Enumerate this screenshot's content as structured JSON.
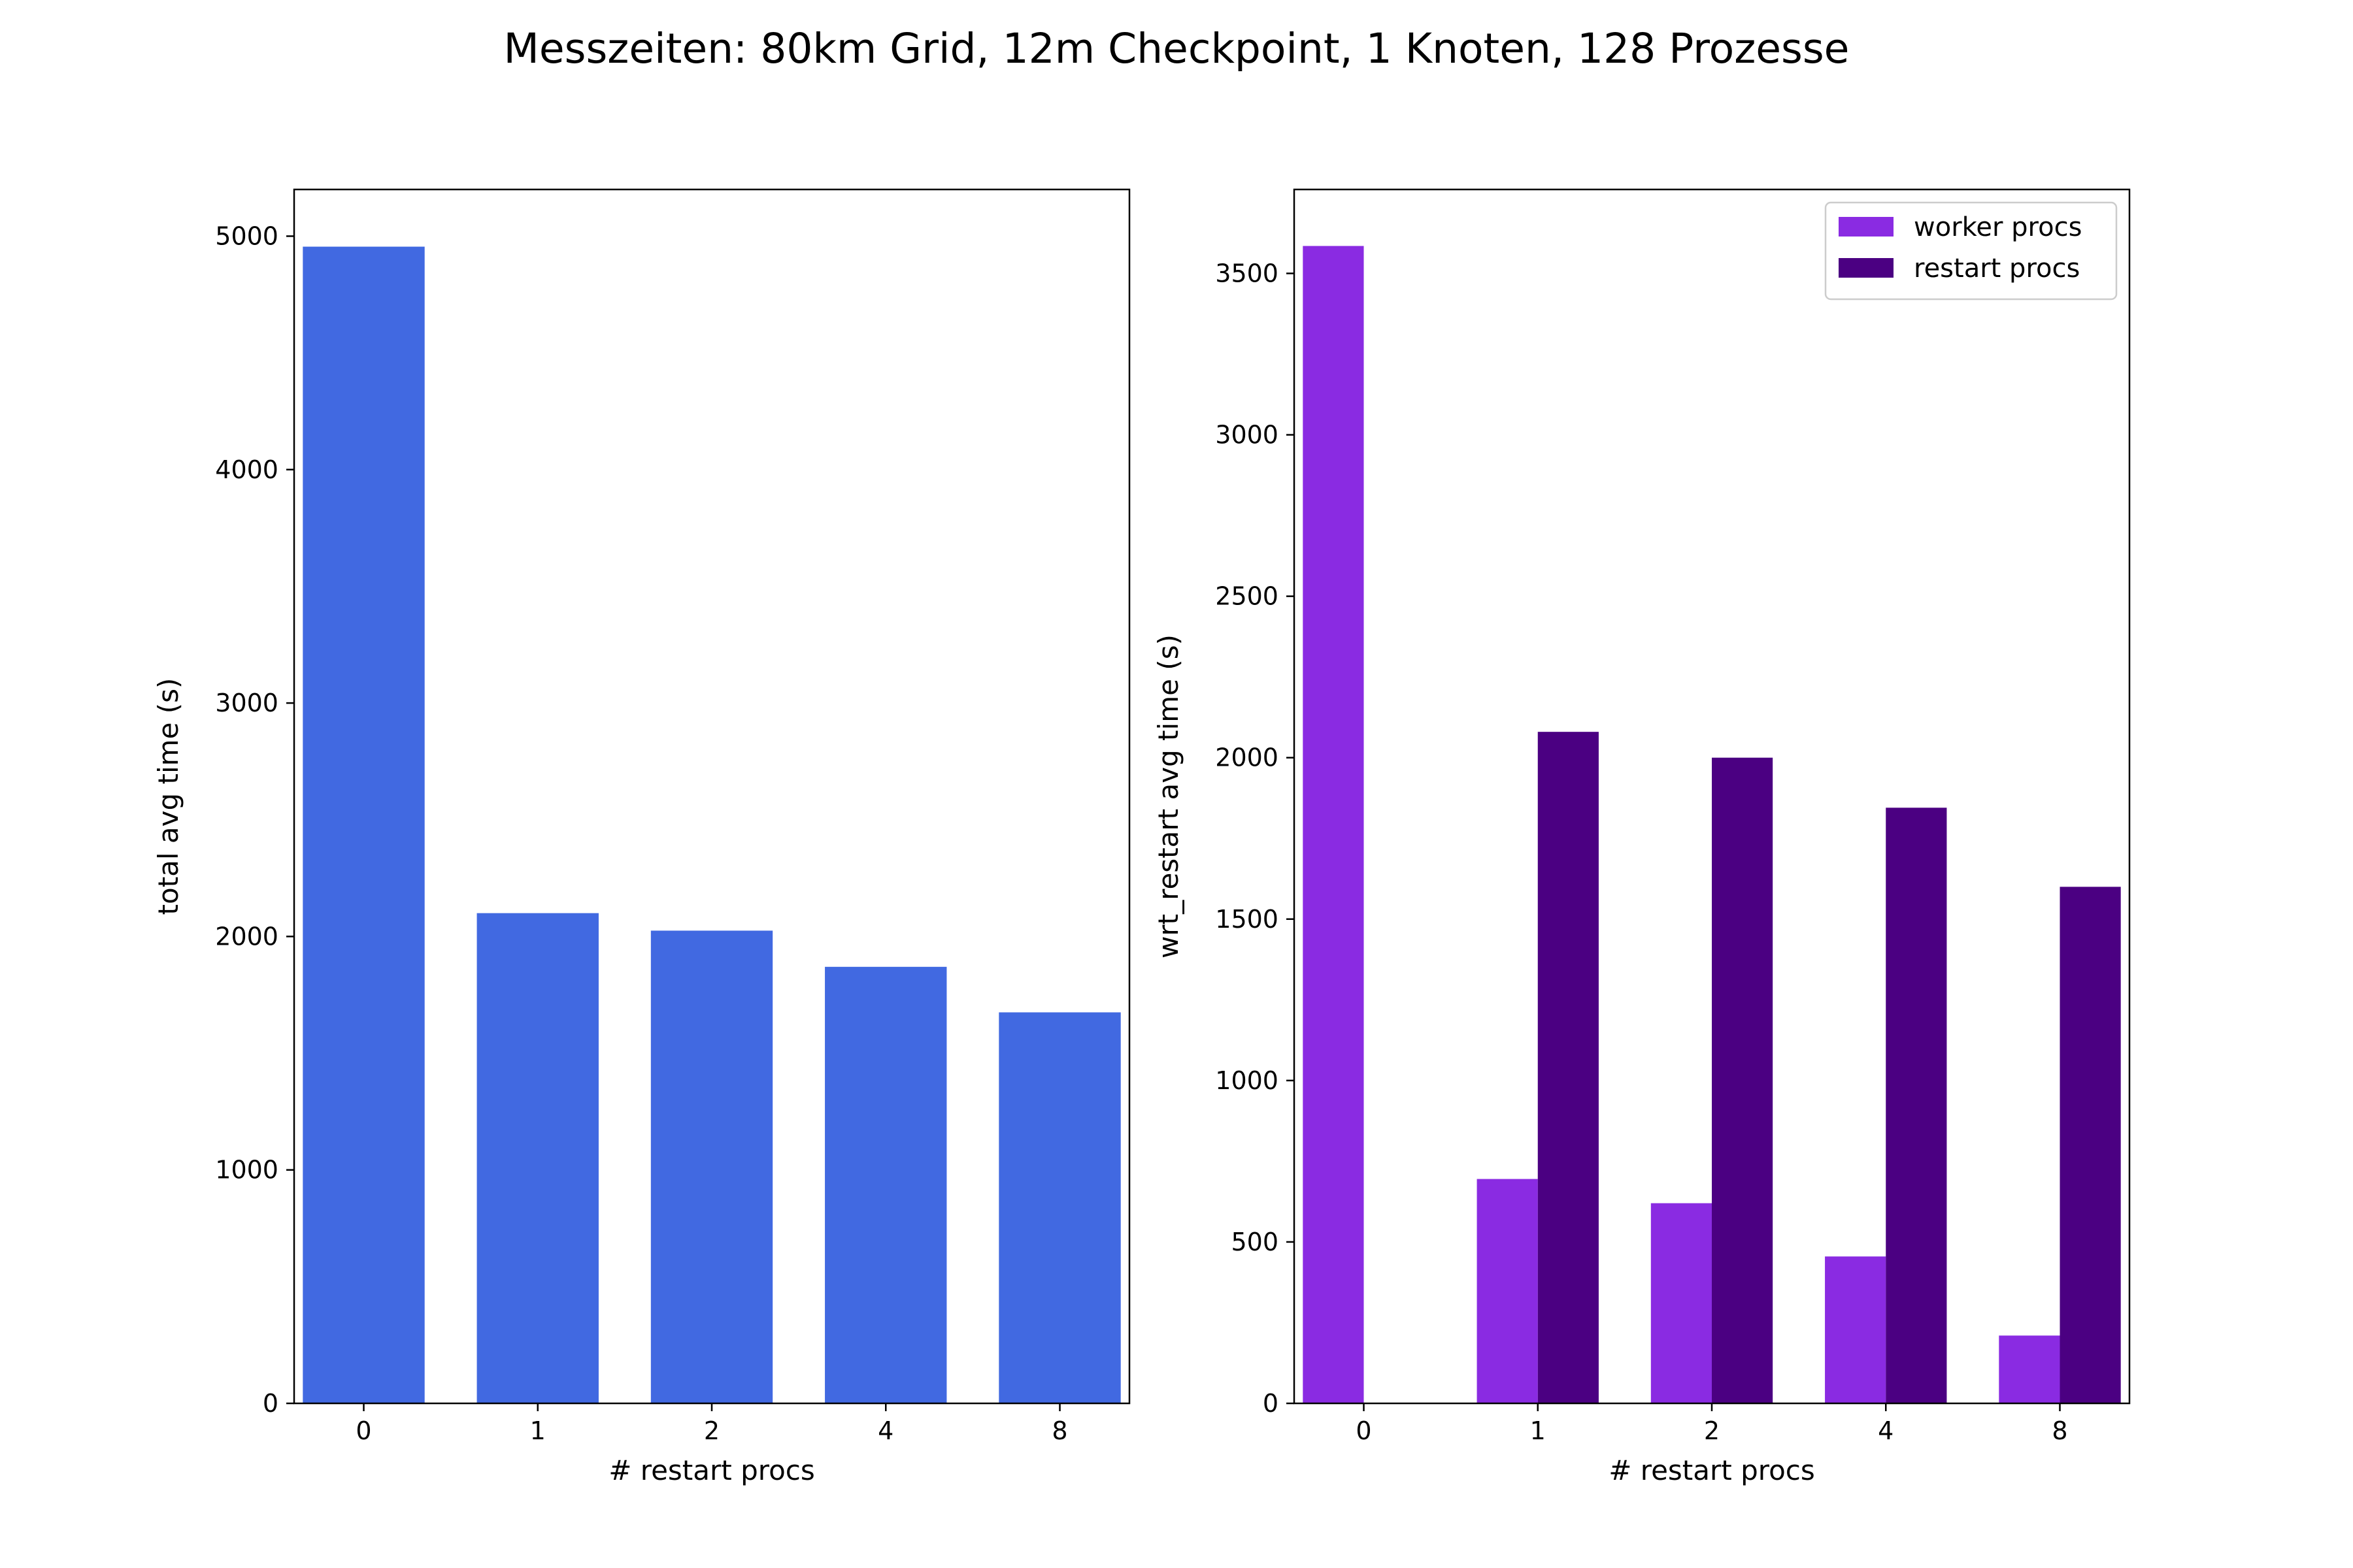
{
  "figure_title": "Messzeiten: 80km Grid, 12m Checkpoint, 1 Knoten, 128 Prozesse",
  "chart_data": [
    {
      "type": "bar",
      "categories": [
        "0",
        "1",
        "2",
        "4",
        "8"
      ],
      "series": [
        {
          "values": [
            4955,
            2100,
            2025,
            1870,
            1675
          ],
          "color": "#4169E1"
        }
      ],
      "xlabel": "# restart procs",
      "ylabel": "total avg time (s)",
      "ylim": [
        0,
        5200
      ],
      "yticks": [
        0,
        1000,
        2000,
        3000,
        4000,
        5000
      ],
      "grid": false,
      "legend": null
    },
    {
      "type": "bar",
      "categories": [
        "0",
        "1",
        "2",
        "4",
        "8"
      ],
      "series": [
        {
          "name": "worker procs",
          "values": [
            3585,
            695,
            620,
            455,
            210
          ],
          "color": "#8A2BE2"
        },
        {
          "name": "restart procs",
          "values": [
            0,
            2080,
            2000,
            1845,
            1600
          ],
          "color": "#4B0082"
        }
      ],
      "xlabel": "# restart procs",
      "ylabel": "wrt_restart avg time (s)",
      "ylim": [
        0,
        3760
      ],
      "yticks": [
        0,
        500,
        1000,
        1500,
        2000,
        2500,
        3000,
        3500
      ],
      "grid": false,
      "legend": "top-right"
    }
  ]
}
